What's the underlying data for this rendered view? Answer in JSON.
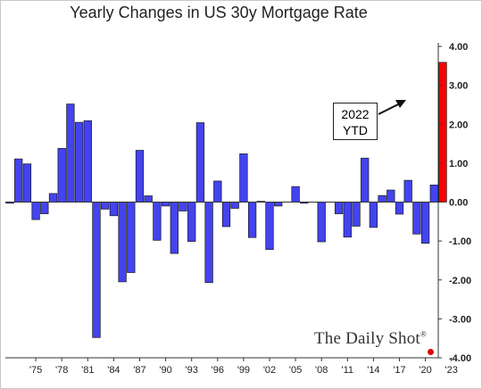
{
  "chart_data": {
    "type": "bar",
    "title": "Yearly Changes in US 30y Mortgage Rate",
    "xlabel": "",
    "ylabel": "",
    "ylim": [
      -4,
      4
    ],
    "yticks": [
      "4.00",
      "3.00",
      "2.00",
      "1.00",
      "0.00",
      "-1.00",
      "-2.00",
      "-3.00",
      "-4.00"
    ],
    "ytick_values": [
      4,
      3,
      2,
      1,
      0,
      -1,
      -2,
      -3,
      -4
    ],
    "xtick_labels": [
      "'75",
      "'78",
      "'81",
      "'84",
      "'87",
      "'90",
      "'93",
      "'96",
      "'99",
      "'02",
      "'05",
      "'08",
      "'11",
      "'14",
      "'17",
      "'20",
      "'23"
    ],
    "years": [
      1972,
      1973,
      1974,
      1975,
      1976,
      1977,
      1978,
      1979,
      1980,
      1981,
      1982,
      1983,
      1984,
      1985,
      1986,
      1987,
      1988,
      1989,
      1990,
      1991,
      1992,
      1993,
      1994,
      1995,
      1996,
      1997,
      1998,
      1999,
      2000,
      2001,
      2002,
      2003,
      2004,
      2005,
      2006,
      2007,
      2008,
      2009,
      2010,
      2011,
      2012,
      2013,
      2014,
      2015,
      2016,
      2017,
      2018,
      2019,
      2020,
      2021,
      2022
    ],
    "values": [
      -0.03,
      1.11,
      0.98,
      -0.45,
      -0.3,
      0.22,
      1.38,
      2.52,
      2.05,
      2.09,
      -3.48,
      -0.18,
      -0.35,
      -2.05,
      -1.81,
      1.33,
      0.16,
      -0.98,
      -0.1,
      -1.32,
      -0.23,
      -1.01,
      2.04,
      -2.07,
      0.54,
      -0.63,
      -0.16,
      1.24,
      -0.91,
      0.02,
      -1.22,
      -0.1,
      0.0,
      0.4,
      -0.03,
      0.0,
      -1.02,
      0.0,
      -0.3,
      -0.9,
      -0.62,
      1.13,
      -0.65,
      0.17,
      0.31,
      -0.31,
      0.56,
      -0.82,
      -1.06,
      0.44,
      3.59
    ],
    "colors": {
      "default": "#4343f0",
      "highlight": "#ff0000",
      "edge": "#1a1a1a"
    },
    "highlight_year": 2022,
    "annotation": {
      "line1": "2022",
      "line2": "YTD"
    }
  },
  "watermark": "The Daily Shot",
  "watermark_mark": "®"
}
